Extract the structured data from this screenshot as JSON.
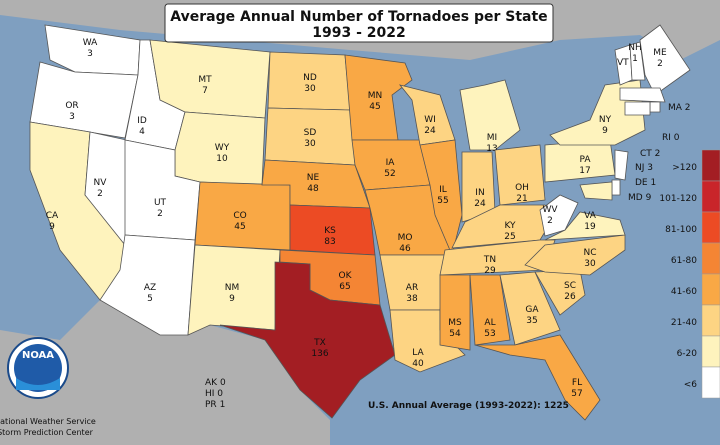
{
  "title": "Average Annual Number of Tornadoes per State",
  "subtitle": "1993 - 2022",
  "states": [
    {
      "abbr": "WA",
      "value": 3,
      "color": "#ffffff"
    },
    {
      "abbr": "OR",
      "value": 3,
      "color": "#ffffff"
    },
    {
      "abbr": "CA",
      "value": 9,
      "color": "#fef3bd"
    },
    {
      "abbr": "NV",
      "value": 2,
      "color": "#ffffff"
    },
    {
      "abbr": "ID",
      "value": 4,
      "color": "#ffffff"
    },
    {
      "abbr": "MT",
      "value": 7,
      "color": "#fef3bd"
    },
    {
      "abbr": "WY",
      "value": 10,
      "color": "#fef3bd"
    },
    {
      "abbr": "UT",
      "value": 2,
      "color": "#ffffff"
    },
    {
      "abbr": "AZ",
      "value": 5,
      "color": "#ffffff"
    },
    {
      "abbr": "CO",
      "value": 45,
      "color": "#f9a845"
    },
    {
      "abbr": "NM",
      "value": 9,
      "color": "#fef3bd"
    },
    {
      "abbr": "ND",
      "value": 30,
      "color": "#fdd483"
    },
    {
      "abbr": "SD",
      "value": 30,
      "color": "#fdd483"
    },
    {
      "abbr": "NE",
      "value": 48,
      "color": "#f9a845"
    },
    {
      "abbr": "KS",
      "value": 83,
      "color": "#ec4b24"
    },
    {
      "abbr": "OK",
      "value": 65,
      "color": "#f48534"
    },
    {
      "abbr": "TX",
      "value": 136,
      "color": "#a31e23"
    },
    {
      "abbr": "MN",
      "value": 45,
      "color": "#f9a845"
    },
    {
      "abbr": "IA",
      "value": 52,
      "color": "#f9a845"
    },
    {
      "abbr": "MO",
      "value": 46,
      "color": "#f9a845"
    },
    {
      "abbr": "AR",
      "value": 38,
      "color": "#fdd483"
    },
    {
      "abbr": "LA",
      "value": 40,
      "color": "#fdd483"
    },
    {
      "abbr": "WI",
      "value": 24,
      "color": "#fdd483"
    },
    {
      "abbr": "IL",
      "value": 55,
      "color": "#f9a845"
    },
    {
      "abbr": "MI",
      "value": 13,
      "color": "#fef3bd"
    },
    {
      "abbr": "IN",
      "value": 24,
      "color": "#fdd483"
    },
    {
      "abbr": "OH",
      "value": 21,
      "color": "#fdd483"
    },
    {
      "abbr": "KY",
      "value": 25,
      "color": "#fdd483"
    },
    {
      "abbr": "TN",
      "value": 29,
      "color": "#fdd483"
    },
    {
      "abbr": "MS",
      "value": 54,
      "color": "#f9a845"
    },
    {
      "abbr": "AL",
      "value": 53,
      "color": "#f9a845"
    },
    {
      "abbr": "GA",
      "value": 35,
      "color": "#fdd483"
    },
    {
      "abbr": "FL",
      "value": 57,
      "color": "#f9a845"
    },
    {
      "abbr": "SC",
      "value": 26,
      "color": "#fdd483"
    },
    {
      "abbr": "NC",
      "value": 30,
      "color": "#fdd483"
    },
    {
      "abbr": "VA",
      "value": 19,
      "color": "#fef3bd"
    },
    {
      "abbr": "WV",
      "value": 2,
      "color": "#ffffff"
    },
    {
      "abbr": "PA",
      "value": 17,
      "color": "#fef3bd"
    },
    {
      "abbr": "NY",
      "value": 9,
      "color": "#fef3bd"
    },
    {
      "abbr": "VT",
      "value": 1,
      "color": "#ffffff"
    },
    {
      "abbr": "NH",
      "value": 1,
      "color": "#ffffff"
    },
    {
      "abbr": "ME",
      "value": 2,
      "color": "#ffffff"
    },
    {
      "abbr": "MA",
      "value": 2,
      "color": "#ffffff"
    },
    {
      "abbr": "RI",
      "value": 0,
      "color": "#ffffff"
    },
    {
      "abbr": "CT",
      "value": 2,
      "color": "#ffffff"
    },
    {
      "abbr": "NJ",
      "value": 3,
      "color": "#ffffff"
    },
    {
      "abbr": "DE",
      "value": 1,
      "color": "#ffffff"
    },
    {
      "abbr": "MD",
      "value": 9,
      "color": "#fef3bd"
    }
  ],
  "territories": [
    {
      "abbr": "AK",
      "value": 0
    },
    {
      "abbr": "HI",
      "value": 0
    },
    {
      "abbr": "PR",
      "value": 1
    }
  ],
  "legend": [
    {
      "label": ">120",
      "color": "#a31e23"
    },
    {
      "label": "101-120",
      "color": "#c9252a"
    },
    {
      "label": "81-100",
      "color": "#ec4b24"
    },
    {
      "label": "61-80",
      "color": "#f48534"
    },
    {
      "label": "41-60",
      "color": "#f9a845"
    },
    {
      "label": "21-40",
      "color": "#fdd483"
    },
    {
      "label": "6-20",
      "color": "#fef3bd"
    },
    {
      "label": "<6",
      "color": "#ffffff"
    }
  ],
  "us_average": {
    "label": "U.S. Annual Average (1993-2022):",
    "value": 1225
  },
  "logo": {
    "name": "NOAA",
    "line1": "National Weather Service",
    "line2": "Storm Prediction Center"
  }
}
